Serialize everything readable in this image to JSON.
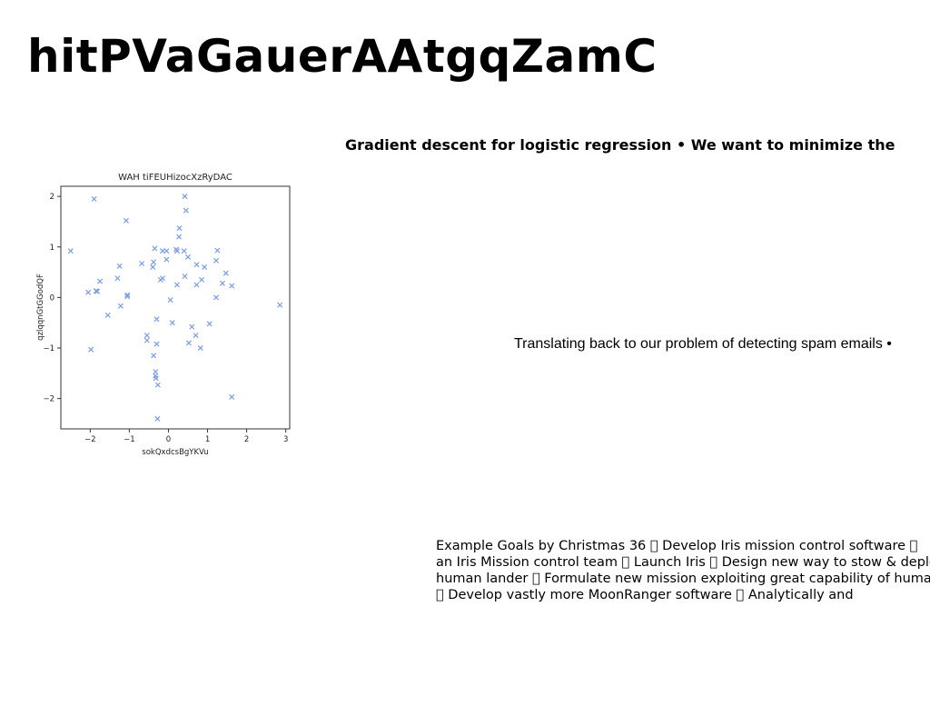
{
  "page": {
    "title": "hitPVaGauerAAtgqZamC",
    "subheading": "Gradient descent for logistic regression • We want to minimize the",
    "mid_text": "Translating back to our problem of detecting spam emails •",
    "body_lines": [
      "Example Goals by Christmas 36 \u0000 Develop Iris mission control software \u0000",
      "an Iris Mission control team \u0000 Launch Iris \u0000 Design new way to stow & deploy",
      "human lander \u0000 Formulate new mission exploiting great capability of human",
      "\u0000 Develop vastly more MoonRanger software \u0000 Analytically and"
    ]
  },
  "chart_data": {
    "type": "scatter",
    "title": "WAH tiFEUHizocXzRyDAC",
    "xlabel": "sokQxdcsBgYKVu",
    "ylabel": "qzlqqnGtGGodQF",
    "xlim": [
      -2.75,
      3.1
    ],
    "ylim": [
      -2.6,
      2.2
    ],
    "xticks": [
      "−2",
      "−1",
      "0",
      "1",
      "2",
      "3"
    ],
    "yticks": [
      "−2",
      "−1",
      "0",
      "1",
      "2"
    ],
    "xtick_values": [
      -2,
      -1,
      0,
      1,
      2,
      3
    ],
    "ytick_values": [
      -2,
      -1,
      0,
      1,
      2
    ],
    "marker": "x",
    "color": "#7b9be8",
    "grid": false,
    "series": [
      {
        "points": [
          [
            -1.9,
            1.95
          ],
          [
            0.42,
            2.0
          ],
          [
            0.45,
            1.72
          ],
          [
            -1.08,
            1.52
          ],
          [
            0.28,
            1.37
          ],
          [
            0.27,
            1.2
          ],
          [
            -2.5,
            0.92
          ],
          [
            -0.35,
            0.97
          ],
          [
            -0.15,
            0.92
          ],
          [
            -0.05,
            0.92
          ],
          [
            0.2,
            0.95
          ],
          [
            0.22,
            0.92
          ],
          [
            0.4,
            0.92
          ],
          [
            1.25,
            0.93
          ],
          [
            0.5,
            0.8
          ],
          [
            -0.05,
            0.75
          ],
          [
            1.22,
            0.73
          ],
          [
            -0.68,
            0.67
          ],
          [
            -0.38,
            0.7
          ],
          [
            -1.25,
            0.62
          ],
          [
            0.72,
            0.65
          ],
          [
            -0.4,
            0.6
          ],
          [
            0.92,
            0.6
          ],
          [
            1.47,
            0.48
          ],
          [
            -1.3,
            0.38
          ],
          [
            -0.15,
            0.38
          ],
          [
            0.42,
            0.42
          ],
          [
            -0.2,
            0.35
          ],
          [
            0.85,
            0.35
          ],
          [
            -1.75,
            0.32
          ],
          [
            1.38,
            0.28
          ],
          [
            0.22,
            0.25
          ],
          [
            0.72,
            0.25
          ],
          [
            1.62,
            0.23
          ],
          [
            -2.05,
            0.1
          ],
          [
            -1.85,
            0.13
          ],
          [
            -1.82,
            0.12
          ],
          [
            -1.05,
            0.05
          ],
          [
            -1.05,
            0.02
          ],
          [
            1.22,
            0.0
          ],
          [
            0.05,
            -0.05
          ],
          [
            -1.22,
            -0.17
          ],
          [
            2.85,
            -0.15
          ],
          [
            -1.55,
            -0.35
          ],
          [
            -0.3,
            -0.43
          ],
          [
            0.1,
            -0.5
          ],
          [
            1.05,
            -0.52
          ],
          [
            0.6,
            -0.58
          ],
          [
            -0.55,
            -0.75
          ],
          [
            0.7,
            -0.75
          ],
          [
            -0.55,
            -0.85
          ],
          [
            -0.3,
            -0.92
          ],
          [
            0.52,
            -0.9
          ],
          [
            0.82,
            -1.0
          ],
          [
            -1.98,
            -1.03
          ],
          [
            -0.38,
            -1.15
          ],
          [
            -0.33,
            -1.47
          ],
          [
            -0.33,
            -1.55
          ],
          [
            -0.32,
            -1.6
          ],
          [
            -0.27,
            -1.73
          ],
          [
            1.62,
            -1.97
          ],
          [
            -0.28,
            -2.4
          ]
        ]
      }
    ]
  }
}
